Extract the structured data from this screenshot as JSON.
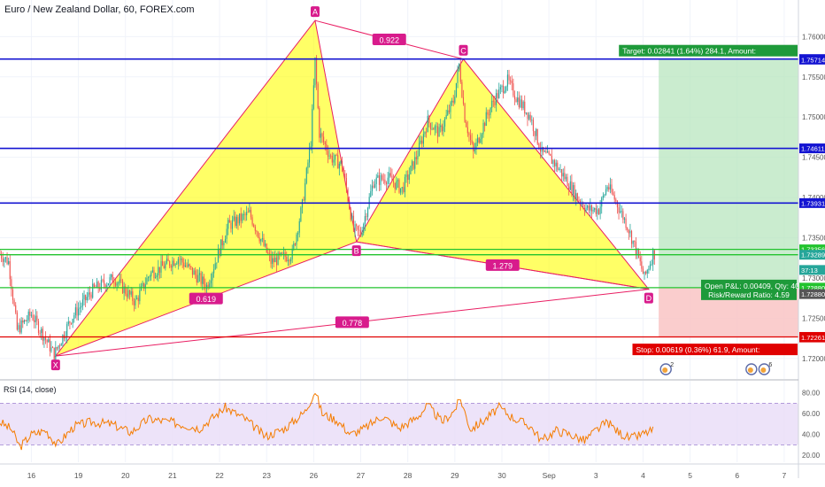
{
  "header": {
    "title": "Euro / New Zealand Dollar, 60, FOREX.com"
  },
  "rsi": {
    "title": "RSI (14, close)"
  },
  "colors": {
    "pattern_fill": "#ffff00",
    "pattern_line": "#e91e63",
    "hline_blue": "#1414d2",
    "hline_green": "#22c32e",
    "hline_red": "#e00000",
    "candle_up": "#26a69a",
    "candle_down": "#ef5350",
    "target_zone": "#b8e6bf",
    "stop_zone": "#f9c4c4",
    "rsi_line": "#f57c00",
    "rsi_band": "#e8dcf8"
  },
  "chart_data": {
    "type": "candlestick",
    "ylim": [
      1.718,
      1.764
    ],
    "y_ticks": [
      {
        "value": 1.76,
        "label": "1.76000"
      },
      {
        "value": 1.755,
        "label": "1.75500"
      },
      {
        "value": 1.75,
        "label": "1.75000"
      },
      {
        "value": 1.745,
        "label": "1.74500"
      },
      {
        "value": 1.74,
        "label": "1.74000"
      },
      {
        "value": 1.735,
        "label": "1.73500"
      },
      {
        "value": 1.73,
        "label": "1.73000"
      },
      {
        "value": 1.725,
        "label": "1.72500"
      },
      {
        "value": 1.72,
        "label": "1.72000"
      }
    ],
    "x_ticks": [
      {
        "idx": 22,
        "label": "16"
      },
      {
        "idx": 55,
        "label": "19"
      },
      {
        "idx": 88,
        "label": "20"
      },
      {
        "idx": 121,
        "label": "21"
      },
      {
        "idx": 154,
        "label": "22"
      },
      {
        "idx": 187,
        "label": "23"
      },
      {
        "idx": 220,
        "label": "26"
      },
      {
        "idx": 253,
        "label": "27"
      },
      {
        "idx": 286,
        "label": "28"
      },
      {
        "idx": 319,
        "label": "29"
      },
      {
        "idx": 352,
        "label": "30"
      },
      {
        "idx": 385,
        "label": "Sep"
      },
      {
        "idx": 418,
        "label": "3"
      },
      {
        "idx": 451,
        "label": "4"
      },
      {
        "idx": 484,
        "label": "5"
      },
      {
        "idx": 517,
        "label": "6"
      },
      {
        "idx": 550,
        "label": "7"
      }
    ],
    "idx_min": 0,
    "idx_max": 560,
    "candle_count": 460,
    "waypoints": [
      [
        0,
        1.733
      ],
      [
        6,
        1.732
      ],
      [
        12,
        1.7235
      ],
      [
        22,
        1.7255
      ],
      [
        30,
        1.723
      ],
      [
        38,
        1.7205
      ],
      [
        50,
        1.725
      ],
      [
        65,
        1.7285
      ],
      [
        80,
        1.73
      ],
      [
        95,
        1.727
      ],
      [
        105,
        1.7305
      ],
      [
        125,
        1.7325
      ],
      [
        145,
        1.729
      ],
      [
        160,
        1.7365
      ],
      [
        175,
        1.738
      ],
      [
        190,
        1.732
      ],
      [
        205,
        1.733
      ],
      [
        212,
        1.739
      ],
      [
        218,
        1.747
      ],
      [
        221,
        1.757
      ],
      [
        224,
        1.748
      ],
      [
        232,
        1.745
      ],
      [
        240,
        1.744
      ],
      [
        248,
        1.736
      ],
      [
        253,
        1.7355
      ],
      [
        262,
        1.742
      ],
      [
        272,
        1.7425
      ],
      [
        282,
        1.741
      ],
      [
        292,
        1.745
      ],
      [
        300,
        1.7495
      ],
      [
        308,
        1.748
      ],
      [
        318,
        1.752
      ],
      [
        322,
        1.7565
      ],
      [
        326,
        1.75
      ],
      [
        332,
        1.7455
      ],
      [
        340,
        1.7495
      ],
      [
        346,
        1.752
      ],
      [
        356,
        1.7545
      ],
      [
        362,
        1.7525
      ],
      [
        372,
        1.75
      ],
      [
        380,
        1.7455
      ],
      [
        388,
        1.7445
      ],
      [
        398,
        1.742
      ],
      [
        405,
        1.74
      ],
      [
        412,
        1.7385
      ],
      [
        420,
        1.7385
      ],
      [
        426,
        1.7415
      ],
      [
        432,
        1.7395
      ],
      [
        440,
        1.7365
      ],
      [
        446,
        1.7335
      ],
      [
        452,
        1.73
      ],
      [
        458,
        1.733
      ]
    ],
    "harmonic_pattern": {
      "points": [
        {
          "label": "X",
          "idx": 39,
          "price": 1.7203
        },
        {
          "label": "A",
          "idx": 221,
          "price": 1.762
        },
        {
          "label": "B",
          "idx": 250,
          "price": 1.7345
        },
        {
          "label": "C",
          "idx": 325,
          "price": 1.7572
        },
        {
          "label": "D",
          "idx": 455,
          "price": 1.7286
        }
      ],
      "ratios": [
        {
          "between": "X-B",
          "value": "0.619"
        },
        {
          "between": "A-C",
          "value": "0.922"
        },
        {
          "between": "B-D",
          "value": "1.279"
        },
        {
          "between": "X-D",
          "value": "0.778"
        }
      ]
    },
    "horizontal_lines": [
      {
        "price": 1.75721,
        "color": "blue"
      },
      {
        "price": 1.74611,
        "color": "blue"
      },
      {
        "price": 1.73931,
        "color": "blue"
      },
      {
        "price": 1.73356,
        "color": "green"
      },
      {
        "price": 1.73289,
        "color": "green"
      },
      {
        "price": 1.7288,
        "color": "green"
      },
      {
        "price": 1.72268,
        "color": "red"
      }
    ],
    "price_labels": [
      {
        "price": 1.75721,
        "text": "1.75721",
        "bg": "#1414d2"
      },
      {
        "price": 1.75714,
        "text": "1.75714",
        "bg": "#1414d2"
      },
      {
        "price": 1.74611,
        "text": "1.74611",
        "bg": "#1414d2"
      },
      {
        "price": 1.73931,
        "text": "1.73931",
        "bg": "#1414d2"
      },
      {
        "price": 1.73356,
        "text": "1.73356",
        "bg": "#22c32e"
      },
      {
        "price": 1.73289,
        "text": "1.73289",
        "bg": "#26a69a"
      },
      {
        "price": 1.731,
        "text": "37:13",
        "bg": "#26a69a"
      },
      {
        "price": 1.7288,
        "text": "1.72880",
        "bg": "#22c32e"
      },
      {
        "price": 1.728,
        "text": "1.72880",
        "bg": "#555555"
      },
      {
        "price": 1.72268,
        "text": "1.72268",
        "bg": "#e00000"
      },
      {
        "price": 1.72261,
        "text": "1.72261",
        "bg": "#e00000"
      }
    ],
    "position": {
      "entry_price": 1.7288,
      "target_price": 1.75721,
      "stop_price": 1.72261,
      "start_idx": 462,
      "end_idx": 560,
      "target_text": "Target: 0.02841 (1.64%) 284.1, Amount:",
      "stop_text": "Stop: 0.00619 (0.36%) 61.9, Amount:",
      "pnl_text": "Open P&L: 0.00409, Qty: 40387",
      "rr_text": "Risk/Reward Ratio: 4.59"
    },
    "events": [
      {
        "idx": 467,
        "count": "2"
      },
      {
        "idx": 527,
        "count": ""
      },
      {
        "idx": 536,
        "count": "6"
      }
    ],
    "rsi": {
      "ylim": [
        15,
        90
      ],
      "overbought": 70,
      "oversold": 30,
      "y_ticks": [
        {
          "value": 80,
          "label": "80.00"
        },
        {
          "value": 60,
          "label": "60.00"
        },
        {
          "value": 40,
          "label": "40.00"
        },
        {
          "value": 20,
          "label": "20.00"
        }
      ],
      "waypoints": [
        [
          0,
          52
        ],
        [
          8,
          45
        ],
        [
          14,
          28
        ],
        [
          22,
          40
        ],
        [
          32,
          44
        ],
        [
          40,
          30
        ],
        [
          52,
          48
        ],
        [
          64,
          52
        ],
        [
          78,
          50
        ],
        [
          92,
          42
        ],
        [
          104,
          55
        ],
        [
          120,
          52
        ],
        [
          140,
          46
        ],
        [
          158,
          66
        ],
        [
          172,
          55
        ],
        [
          186,
          38
        ],
        [
          200,
          46
        ],
        [
          214,
          62
        ],
        [
          221,
          82
        ],
        [
          226,
          60
        ],
        [
          236,
          54
        ],
        [
          246,
          40
        ],
        [
          256,
          46
        ],
        [
          268,
          58
        ],
        [
          280,
          46
        ],
        [
          292,
          56
        ],
        [
          300,
          68
        ],
        [
          310,
          52
        ],
        [
          318,
          62
        ],
        [
          323,
          74
        ],
        [
          330,
          45
        ],
        [
          340,
          54
        ],
        [
          350,
          66
        ],
        [
          360,
          56
        ],
        [
          372,
          48
        ],
        [
          380,
          34
        ],
        [
          390,
          44
        ],
        [
          400,
          40
        ],
        [
          410,
          34
        ],
        [
          418,
          44
        ],
        [
          426,
          52
        ],
        [
          434,
          42
        ],
        [
          442,
          36
        ],
        [
          450,
          40
        ],
        [
          458,
          44
        ]
      ]
    }
  }
}
